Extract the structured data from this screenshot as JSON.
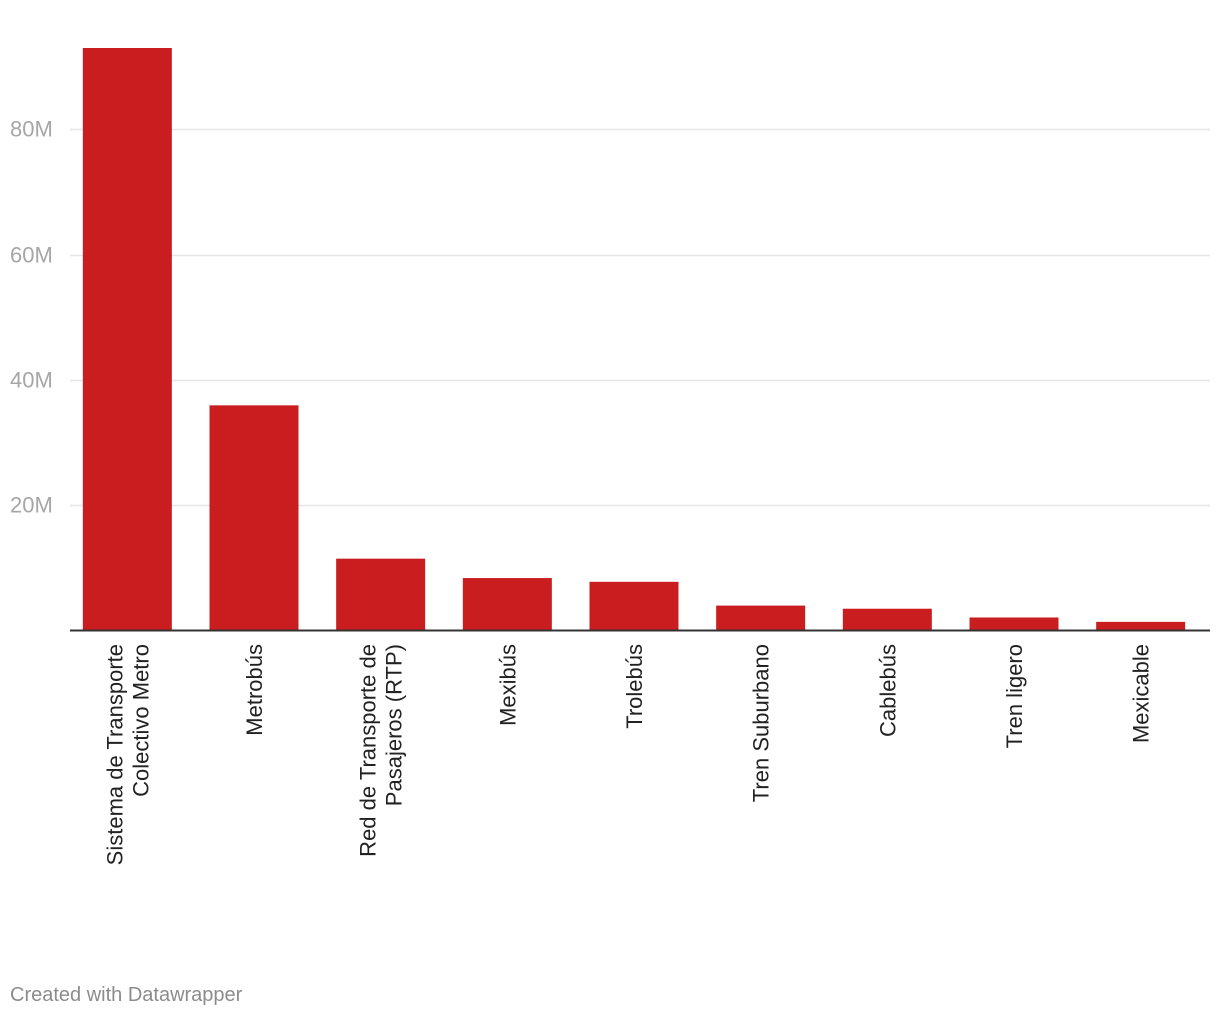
{
  "footer": "Created with Datawrapper",
  "colors": {
    "bar": "#c91d1f",
    "grid": "#e6e6e6",
    "axis": "#333333",
    "tick_text": "#a6a6a6",
    "label_text": "#222222"
  },
  "chart_data": {
    "type": "bar",
    "categories": [
      [
        "Sistema de Transporte",
        "Colectivo Metro"
      ],
      [
        "Metrobús"
      ],
      [
        "Red de Transporte de",
        "Pasajeros (RTP)"
      ],
      [
        "Mexibús"
      ],
      [
        "Trolebús"
      ],
      [
        "Tren Suburbano"
      ],
      [
        "Cablebús"
      ],
      [
        "Tren ligero"
      ],
      [
        "Mexicable"
      ]
    ],
    "values": [
      93000000,
      35900000,
      11400000,
      8300000,
      7700000,
      3900000,
      3400000,
      2000000,
      1300000
    ],
    "ylim": [
      0,
      93000000
    ],
    "yticks": [
      20000000,
      40000000,
      60000000,
      80000000
    ],
    "ytick_labels": [
      "20M",
      "40M",
      "60M",
      "80M"
    ],
    "title": "",
    "xlabel": "",
    "ylabel": "",
    "grid": true,
    "x_label_orientation": "vertical"
  }
}
